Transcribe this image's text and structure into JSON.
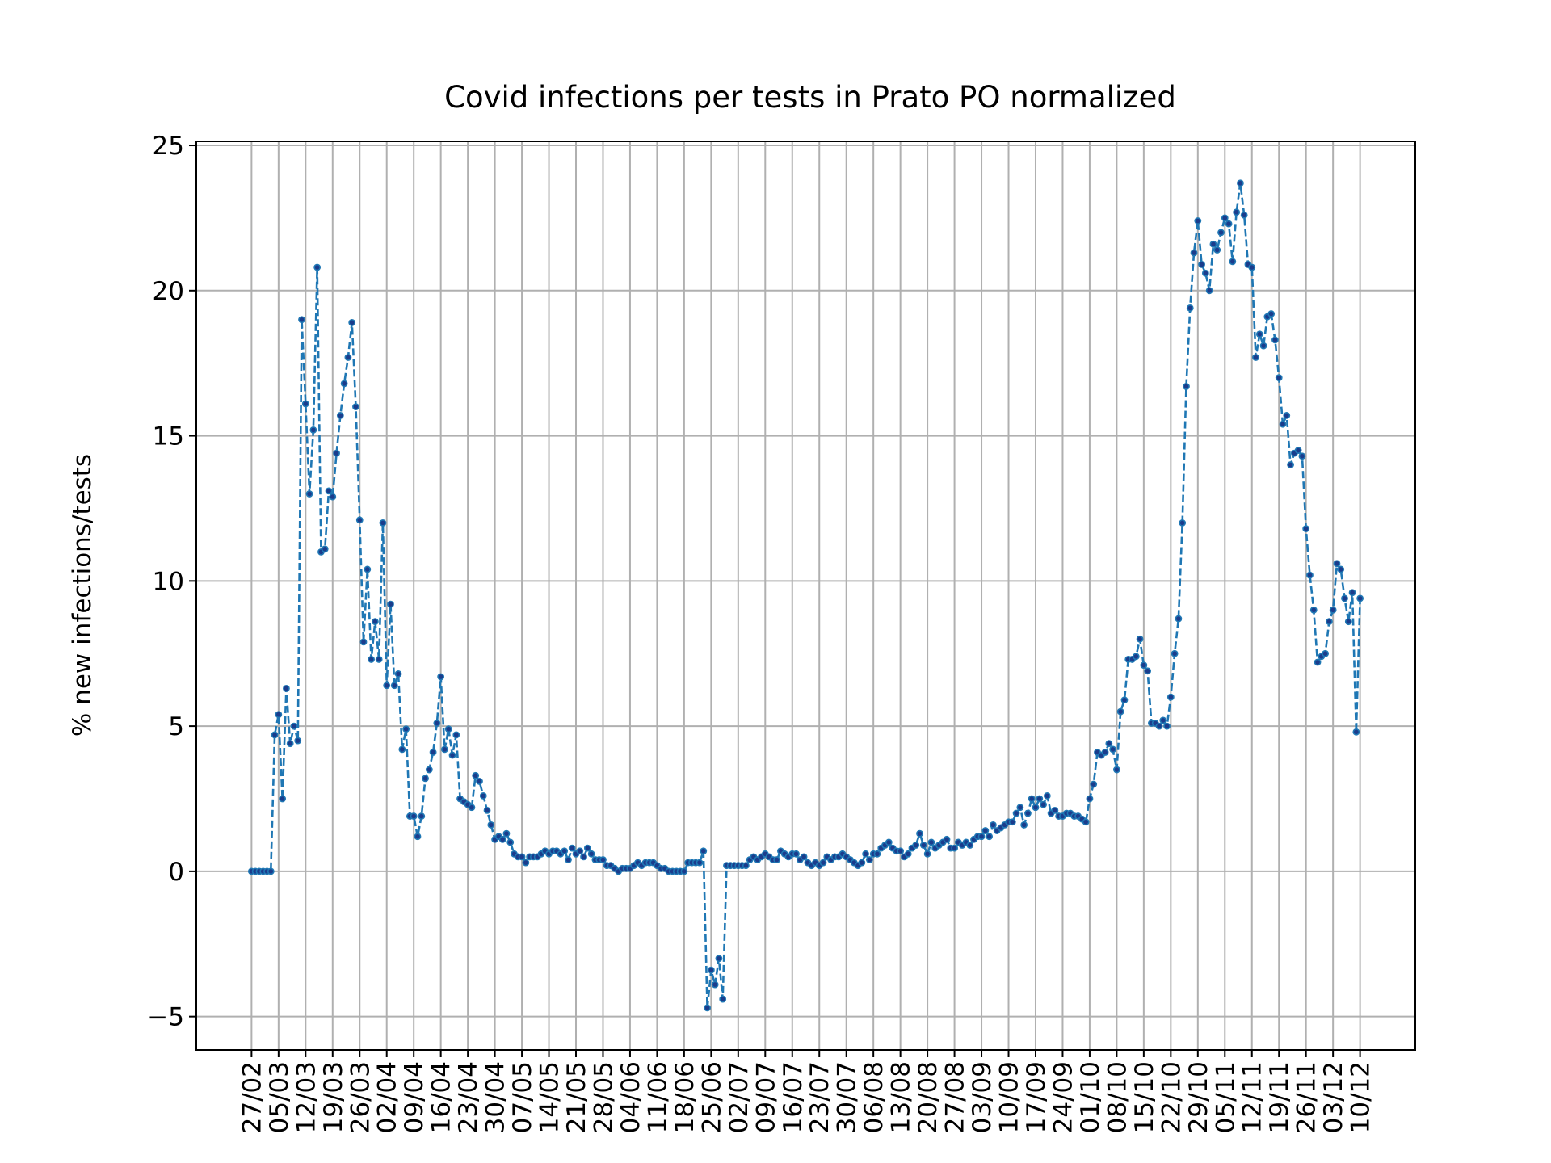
{
  "chart_data": {
    "type": "line",
    "title": "Covid infections per tests in Prato PO normalized",
    "ylabel": "% new infections/tests",
    "color": "#1f77b4",
    "marker_color": "#1a3c8c",
    "grid": true,
    "ylim": [
      -6.15,
      25.14
    ],
    "yticks": [
      {
        "value": -5,
        "label": "−5"
      },
      0,
      5,
      10,
      15,
      20,
      25
    ],
    "categories": [
      "27/02",
      null,
      null,
      null,
      null,
      null,
      null,
      "05/03",
      null,
      null,
      null,
      null,
      null,
      null,
      "12/03",
      null,
      null,
      null,
      null,
      null,
      null,
      "19/03",
      null,
      null,
      null,
      null,
      null,
      null,
      "26/03",
      null,
      null,
      null,
      null,
      null,
      null,
      "02/04",
      null,
      null,
      null,
      null,
      null,
      null,
      "09/04",
      null,
      null,
      null,
      null,
      null,
      null,
      "16/04",
      null,
      null,
      null,
      null,
      null,
      null,
      "23/04",
      null,
      null,
      null,
      null,
      null,
      null,
      "30/04",
      null,
      null,
      null,
      null,
      null,
      null,
      "07/05",
      null,
      null,
      null,
      null,
      null,
      null,
      "14/05",
      null,
      null,
      null,
      null,
      null,
      null,
      "21/05",
      null,
      null,
      null,
      null,
      null,
      null,
      "28/05",
      null,
      null,
      null,
      null,
      null,
      null,
      "04/06",
      null,
      null,
      null,
      null,
      null,
      null,
      "11/06",
      null,
      null,
      null,
      null,
      null,
      null,
      "18/06",
      null,
      null,
      null,
      null,
      null,
      null,
      "25/06",
      null,
      null,
      null,
      null,
      null,
      null,
      "02/07",
      null,
      null,
      null,
      null,
      null,
      null,
      "09/07",
      null,
      null,
      null,
      null,
      null,
      null,
      "16/07",
      null,
      null,
      null,
      null,
      null,
      null,
      "23/07",
      null,
      null,
      null,
      null,
      null,
      null,
      "30/07",
      null,
      null,
      null,
      null,
      null,
      null,
      "06/08",
      null,
      null,
      null,
      null,
      null,
      null,
      "13/08",
      null,
      null,
      null,
      null,
      null,
      null,
      "20/08",
      null,
      null,
      null,
      null,
      null,
      null,
      "27/08",
      null,
      null,
      null,
      null,
      null,
      null,
      "03/09",
      null,
      null,
      null,
      null,
      null,
      null,
      "10/09",
      null,
      null,
      null,
      null,
      null,
      null,
      "17/09",
      null,
      null,
      null,
      null,
      null,
      null,
      "24/09",
      null,
      null,
      null,
      null,
      null,
      null,
      "01/10",
      null,
      null,
      null,
      null,
      null,
      null,
      "08/10",
      null,
      null,
      null,
      null,
      null,
      null,
      "15/10",
      null,
      null,
      null,
      null,
      null,
      null,
      "22/10",
      null,
      null,
      null,
      null,
      null,
      null,
      "29/10",
      null,
      null,
      null,
      null,
      null,
      null,
      "05/11",
      null,
      null,
      null,
      null,
      null,
      null,
      "12/11",
      null,
      null,
      null,
      null,
      null,
      null,
      "19/11",
      null,
      null,
      null,
      null,
      null,
      null,
      "26/11",
      null,
      null,
      null,
      null,
      null,
      null,
      "03/12",
      null,
      null,
      null,
      null,
      null,
      null,
      "10/12"
    ],
    "values": [
      0,
      0,
      0,
      0,
      0,
      0,
      4.7,
      5.4,
      2.5,
      6.3,
      4.4,
      5.0,
      4.5,
      19.0,
      16.1,
      13.0,
      15.2,
      20.8,
      11.0,
      11.1,
      13.1,
      12.9,
      14.4,
      15.7,
      16.8,
      17.7,
      18.9,
      16.0,
      12.1,
      7.9,
      10.4,
      7.3,
      8.6,
      7.3,
      12.0,
      6.4,
      9.2,
      6.4,
      6.8,
      4.2,
      4.9,
      1.9,
      1.9,
      1.2,
      1.9,
      3.2,
      3.5,
      4.1,
      5.1,
      6.7,
      4.2,
      4.9,
      4.0,
      4.7,
      2.5,
      2.4,
      2.3,
      2.2,
      3.3,
      3.1,
      2.6,
      2.1,
      1.6,
      1.1,
      1.2,
      1.1,
      1.3,
      1.0,
      0.6,
      0.5,
      0.5,
      0.3,
      0.5,
      0.5,
      0.5,
      0.6,
      0.7,
      0.6,
      0.7,
      0.7,
      0.6,
      0.7,
      0.4,
      0.8,
      0.6,
      0.7,
      0.5,
      0.8,
      0.6,
      0.4,
      0.4,
      0.4,
      0.2,
      0.2,
      0.1,
      0.0,
      0.1,
      0.1,
      0.1,
      0.2,
      0.3,
      0.2,
      0.3,
      0.3,
      0.3,
      0.2,
      0.1,
      0.1,
      0.0,
      0.0,
      0.0,
      0.0,
      0.0,
      0.3,
      0.3,
      0.3,
      0.3,
      0.7,
      -4.7,
      -3.4,
      -3.9,
      -3.0,
      -4.4,
      0.2,
      0.2,
      0.2,
      0.2,
      0.2,
      0.2,
      0.4,
      0.5,
      0.4,
      0.5,
      0.6,
      0.5,
      0.4,
      0.4,
      0.7,
      0.6,
      0.5,
      0.6,
      0.6,
      0.4,
      0.5,
      0.3,
      0.2,
      0.3,
      0.2,
      0.3,
      0.5,
      0.4,
      0.5,
      0.5,
      0.6,
      0.5,
      0.4,
      0.3,
      0.2,
      0.3,
      0.6,
      0.4,
      0.6,
      0.6,
      0.8,
      0.9,
      1.0,
      0.8,
      0.7,
      0.7,
      0.5,
      0.6,
      0.8,
      0.9,
      1.3,
      0.9,
      0.6,
      1.0,
      0.8,
      0.9,
      1.0,
      1.1,
      0.8,
      0.8,
      1.0,
      0.9,
      1.0,
      0.9,
      1.1,
      1.2,
      1.2,
      1.4,
      1.2,
      1.6,
      1.4,
      1.5,
      1.6,
      1.7,
      1.7,
      2.0,
      2.2,
      1.6,
      2.0,
      2.5,
      2.2,
      2.5,
      2.3,
      2.6,
      2.0,
      2.1,
      1.9,
      1.9,
      2.0,
      2.0,
      1.9,
      1.9,
      1.8,
      1.7,
      2.5,
      3.0,
      4.1,
      4.0,
      4.1,
      4.4,
      4.2,
      3.5,
      5.5,
      5.9,
      7.3,
      7.3,
      7.4,
      8.0,
      7.1,
      6.9,
      5.1,
      5.1,
      5.0,
      5.2,
      5.0,
      6.0,
      7.5,
      8.7,
      12.0,
      16.7,
      19.4,
      21.3,
      22.4,
      20.9,
      20.6,
      20.0,
      21.6,
      21.4,
      22.0,
      22.5,
      22.3,
      21.0,
      22.7,
      23.7,
      22.6,
      20.9,
      20.8,
      17.7,
      18.5,
      18.1,
      19.1,
      19.2,
      18.3,
      17.0,
      15.4,
      15.7,
      14.0,
      14.4,
      14.5,
      14.3,
      11.8,
      10.2,
      9.0,
      7.2,
      7.4,
      7.5,
      8.6,
      9.0,
      10.6,
      10.4,
      9.4,
      8.6,
      9.6,
      4.8,
      9.4
    ]
  }
}
